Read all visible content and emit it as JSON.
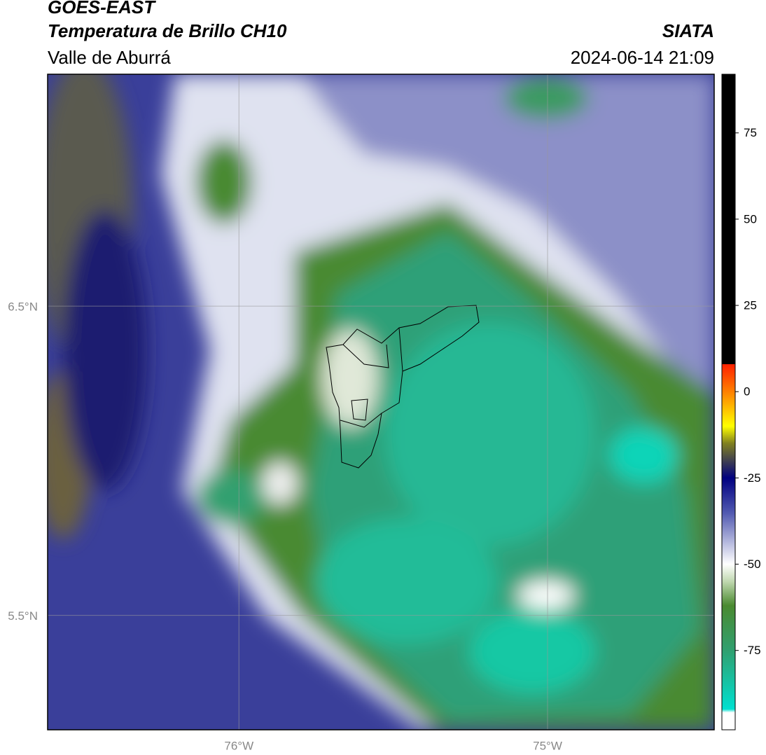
{
  "header": {
    "line1": "GOES-EAST",
    "line2": "Temperatura de Brillo CH10",
    "line3": "Valle de Aburrá",
    "source": "SIATA",
    "datetime": "2024-06-14 21:09"
  },
  "map": {
    "latlim": [
      5.13,
      7.25
    ],
    "lonlim": [
      -76.62,
      -74.46
    ],
    "lat_ticks": [
      {
        "value": 6.5,
        "label": "6.5°N"
      },
      {
        "value": 5.5,
        "label": "5.5°N"
      }
    ],
    "lon_ticks": [
      {
        "value": -76,
        "label": "76°W"
      },
      {
        "value": -75,
        "label": "75°W"
      }
    ],
    "grid": true
  },
  "colorbar": {
    "range": [
      -98,
      92
    ],
    "ticks": [
      75,
      50,
      25,
      0,
      -25,
      -50,
      -75
    ],
    "stops": [
      {
        "value": 92,
        "color": "#000000"
      },
      {
        "value": 8,
        "color": "#000000"
      },
      {
        "value": 8,
        "color": "#ff2000"
      },
      {
        "value": 0,
        "color": "#ff8000"
      },
      {
        "value": -10,
        "color": "#ffff00"
      },
      {
        "value": -15,
        "color": "#808020"
      },
      {
        "value": -25,
        "color": "#000080"
      },
      {
        "value": -35,
        "color": "#5058b0"
      },
      {
        "value": -50,
        "color": "#ffffff"
      },
      {
        "value": -55,
        "color": "#c0d8b0"
      },
      {
        "value": -62,
        "color": "#4a8a30"
      },
      {
        "value": -75,
        "color": "#30a070"
      },
      {
        "value": -92,
        "color": "#00e0d0"
      },
      {
        "value": -93,
        "color": "#ffffff"
      },
      {
        "value": -98,
        "color": "#ffffff"
      }
    ]
  }
}
